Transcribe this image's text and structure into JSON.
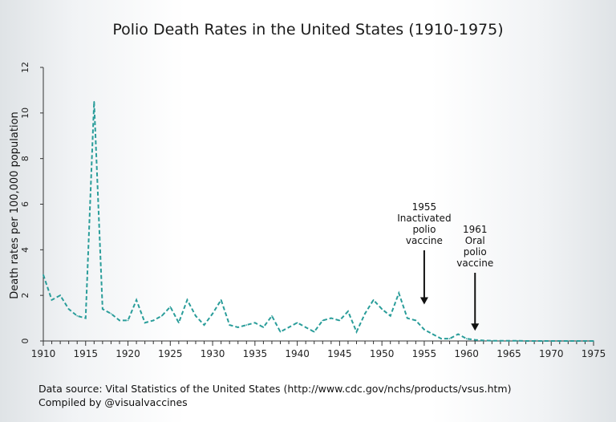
{
  "chart_data": {
    "type": "line",
    "title": "Polio Death Rates in the United States (1910-1975)",
    "ylabel": "Death rates per 100,000 population",
    "xlabel": "",
    "xlim": [
      1910,
      1975
    ],
    "ylim": [
      0,
      12
    ],
    "x_ticks": [
      "1910",
      "1915",
      "1920",
      "1925",
      "1930",
      "1935",
      "1940",
      "1945",
      "1950",
      "1955",
      "1960",
      "1965",
      "1970",
      "1975"
    ],
    "y_ticks": [
      "0",
      "2",
      "4",
      "6",
      "8",
      "10",
      "12"
    ],
    "grid": false,
    "line_color": "#2a9d9a",
    "line_style": "dashed",
    "series": [
      {
        "x": [
          1910,
          1911,
          1912,
          1913,
          1914,
          1915,
          1916,
          1917,
          1918,
          1919,
          1920,
          1921,
          1922,
          1923,
          1924,
          1925,
          1926,
          1927,
          1928,
          1929,
          1930,
          1931,
          1932,
          1933,
          1934,
          1935,
          1936,
          1937,
          1938,
          1939,
          1940,
          1941,
          1942,
          1943,
          1944,
          1945,
          1946,
          1947,
          1948,
          1949,
          1950,
          1951,
          1952,
          1953,
          1954,
          1955,
          1956,
          1957,
          1958,
          1959,
          1960,
          1961,
          1962,
          1963,
          1964,
          1965,
          1966,
          1967,
          1968,
          1969,
          1970,
          1971,
          1972,
          1973,
          1974,
          1975
        ],
        "values": [
          2.9,
          1.8,
          2.0,
          1.4,
          1.1,
          1.0,
          10.5,
          1.4,
          1.2,
          0.9,
          0.9,
          1.8,
          0.8,
          0.9,
          1.1,
          1.5,
          0.8,
          1.8,
          1.1,
          0.7,
          1.2,
          1.8,
          0.7,
          0.6,
          0.7,
          0.8,
          0.6,
          1.1,
          0.4,
          0.6,
          0.8,
          0.6,
          0.4,
          0.9,
          1.0,
          0.9,
          1.3,
          0.4,
          1.2,
          1.8,
          1.4,
          1.1,
          2.1,
          1.0,
          0.9,
          0.5,
          0.3,
          0.1,
          0.1,
          0.3,
          0.1,
          0.05,
          0.02,
          0.01,
          0.01,
          0.01,
          0.01,
          0.0,
          0.0,
          0.0,
          0.0,
          0.0,
          0.0,
          0.0,
          0.0,
          0.0
        ]
      }
    ],
    "annotations": [
      {
        "lines": [
          "1955",
          "Inactivated",
          "polio",
          "vaccine"
        ],
        "x": 1955,
        "arrow_to_y": 1.6
      },
      {
        "lines": [
          "1961",
          "Oral",
          "polio",
          "vaccine"
        ],
        "x": 1961,
        "arrow_to_y": 0.45
      }
    ]
  },
  "source": {
    "line1": "Data source: Vital Statistics of the United States (http://www.cdc.gov/nchs/products/vsus.htm)",
    "line2": "Compiled by @visualvaccines"
  }
}
